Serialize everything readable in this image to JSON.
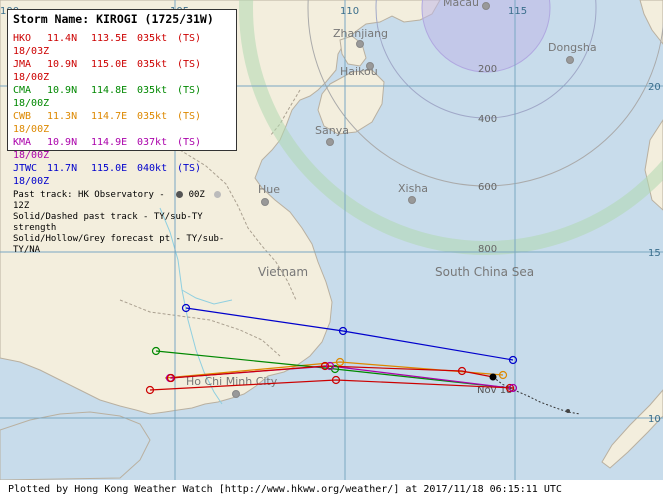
{
  "storm": {
    "title": "Storm Name: KIROGI (1725/31W)"
  },
  "agencies": [
    {
      "name": "HKO",
      "lat": "11.4N",
      "lon": "113.5E",
      "wind": "035kt",
      "cls": "(TS)",
      "time": "18/03Z",
      "color": "#cc0000"
    },
    {
      "name": "JMA",
      "lat": "10.9N",
      "lon": "115.0E",
      "wind": "035kt",
      "cls": "(TS)",
      "time": "18/00Z",
      "color": "#cc0000"
    },
    {
      "name": "CMA",
      "lat": "10.9N",
      "lon": "114.8E",
      "wind": "035kt",
      "cls": "(TS)",
      "time": "18/00Z",
      "color": "#008800"
    },
    {
      "name": "CWB",
      "lat": "11.3N",
      "lon": "114.7E",
      "wind": "035kt",
      "cls": "(TS)",
      "time": "18/00Z",
      "color": "#dd8800"
    },
    {
      "name": "KMA",
      "lat": "10.9N",
      "lon": "114.9E",
      "wind": "037kt",
      "cls": "(TS)",
      "time": "18/00Z",
      "color": "#aa00aa"
    },
    {
      "name": "JTWC",
      "lat": "11.7N",
      "lon": "115.0E",
      "wind": "040kt",
      "cls": "(TS)",
      "time": "18/00Z",
      "color": "#0000cc"
    }
  ],
  "legend_notes": {
    "past_track": "Past track: HK Observatory -",
    "dot_00z": "00Z",
    "dot_12z": "12Z",
    "line2": "Solid/Dashed past track - TY/sub-TY strength",
    "line3": "Solid/Hollow/Grey forecast pt - TY/sub-TY/NA"
  },
  "places": [
    {
      "name": "Macau"
    },
    {
      "name": "Zhanjiang"
    },
    {
      "name": "Haikou"
    },
    {
      "name": "Dongsha"
    },
    {
      "name": "Sanya"
    },
    {
      "name": "Xisha"
    },
    {
      "name": "Hue"
    },
    {
      "name": "Vietnam"
    },
    {
      "name": "South China Sea"
    },
    {
      "name": "Ho Chi Minh City"
    },
    {
      "name": "Nov 18"
    }
  ],
  "grid_labels": {
    "lon": [
      "110",
      "115",
      "105",
      "100"
    ],
    "lat": [
      "20",
      "15",
      "10"
    ],
    "range": [
      "200",
      "400",
      "600",
      "800"
    ]
  },
  "colors": {
    "sea": "#c8dceb",
    "land": "#f3eedd",
    "grid": "#7aa7c2"
  },
  "footer": "Plotted by Hong Kong Weather Watch [http://www.hkww.org/weather/] at 2017/11/18 06:15:11 UTC"
}
